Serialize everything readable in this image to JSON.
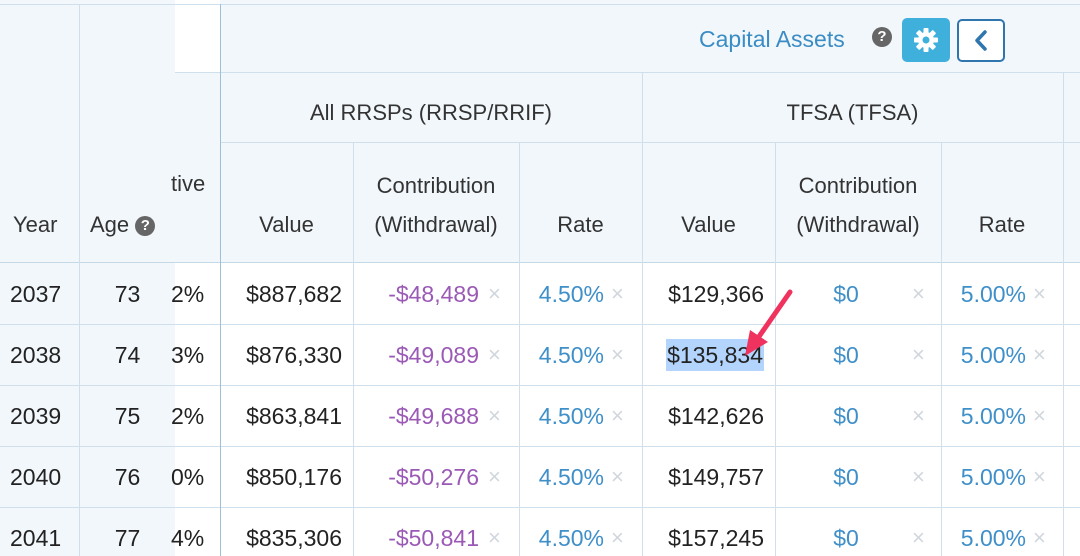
{
  "toolbar": {
    "capital_assets_label": "Capital Assets",
    "help_icon": "question-circle-icon",
    "settings_icon": "gear-icon",
    "collapse_icon": "chevron-left-icon",
    "accent_color": "#3fb0dc"
  },
  "columns": {
    "year": "Year",
    "age": "Age",
    "cut_header": "tive",
    "rrsp_group": "All RRSPs (RRSP/RRIF)",
    "tfsa_group": "TFSA (TFSA)",
    "value": "Value",
    "contribution_line1": "Contribution",
    "contribution_line2": "(Withdrawal)",
    "rate": "Rate"
  },
  "rows": [
    {
      "year": "2037",
      "age": "73",
      "cut": "2%",
      "rrsp_value": "$887,682",
      "rrsp_contrib": "-$48,489",
      "rrsp_rate": "4.50%",
      "tfsa_value": "$129,366",
      "tfsa_contrib": "$0",
      "tfsa_rate": "5.00%"
    },
    {
      "year": "2038",
      "age": "74",
      "cut": "3%",
      "rrsp_value": "$876,330",
      "rrsp_contrib": "-$49,089",
      "rrsp_rate": "4.50%",
      "tfsa_value": "$135,834",
      "tfsa_contrib": "$0",
      "tfsa_rate": "5.00%"
    },
    {
      "year": "2039",
      "age": "75",
      "cut": "2%",
      "rrsp_value": "$863,841",
      "rrsp_contrib": "-$49,688",
      "rrsp_rate": "4.50%",
      "tfsa_value": "$142,626",
      "tfsa_contrib": "$0",
      "tfsa_rate": "5.00%"
    },
    {
      "year": "2040",
      "age": "76",
      "cut": "0%",
      "rrsp_value": "$850,176",
      "rrsp_contrib": "-$50,276",
      "rrsp_rate": "4.50%",
      "tfsa_value": "$149,757",
      "tfsa_contrib": "$0",
      "tfsa_rate": "5.00%"
    },
    {
      "year": "2041",
      "age": "77",
      "cut": "4%",
      "rrsp_value": "$835,306",
      "rrsp_contrib": "-$50,841",
      "rrsp_rate": "4.50%",
      "tfsa_value": "$157,245",
      "tfsa_contrib": "$0",
      "tfsa_rate": "5.00%"
    }
  ],
  "clear_glyph": "×",
  "highlight": {
    "row": 1,
    "column": "tfsa_value",
    "color": "#b3d4fc"
  },
  "annotation": {
    "type": "arrow",
    "color": "#f0335e"
  }
}
